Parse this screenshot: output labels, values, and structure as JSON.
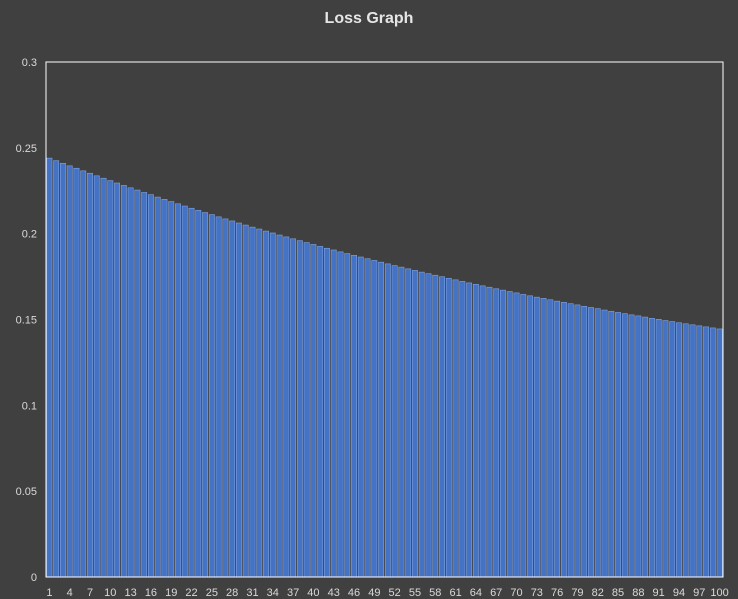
{
  "chart_data": {
    "type": "bar",
    "title": "Loss Graph",
    "xlabel": "",
    "ylabel": "",
    "ylim": [
      0,
      0.3
    ],
    "yticks": [
      "0",
      "0.05",
      "0.1",
      "0.15",
      "0.2",
      "0.25",
      "0.3"
    ],
    "xtick_labels": [
      "1",
      "4",
      "7",
      "10",
      "13",
      "16",
      "19",
      "22",
      "25",
      "28",
      "31",
      "34",
      "37",
      "40",
      "43",
      "46",
      "49",
      "52",
      "55",
      "58",
      "61",
      "64",
      "67",
      "70",
      "73",
      "76",
      "79",
      "82",
      "85",
      "88",
      "91",
      "94",
      "97",
      "100"
    ],
    "grid": false,
    "legend": "none",
    "categories": [
      1,
      2,
      3,
      4,
      5,
      6,
      7,
      8,
      9,
      10,
      11,
      12,
      13,
      14,
      15,
      16,
      17,
      18,
      19,
      20,
      21,
      22,
      23,
      24,
      25,
      26,
      27,
      28,
      29,
      30,
      31,
      32,
      33,
      34,
      35,
      36,
      37,
      38,
      39,
      40,
      41,
      42,
      43,
      44,
      45,
      46,
      47,
      48,
      49,
      50,
      51,
      52,
      53,
      54,
      55,
      56,
      57,
      58,
      59,
      60,
      61,
      62,
      63,
      64,
      65,
      66,
      67,
      68,
      69,
      70,
      71,
      72,
      73,
      74,
      75,
      76,
      77,
      78,
      79,
      80,
      81,
      82,
      83,
      84,
      85,
      86,
      87,
      88,
      89,
      90,
      91,
      92,
      93,
      94,
      95,
      96,
      97,
      98,
      99,
      100
    ],
    "values": [
      0.244,
      0.2425,
      0.241,
      0.2395,
      0.2381,
      0.2366,
      0.2352,
      0.2337,
      0.2323,
      0.2309,
      0.2295,
      0.2281,
      0.2267,
      0.2254,
      0.224,
      0.2227,
      0.2213,
      0.22,
      0.2187,
      0.2174,
      0.2161,
      0.2148,
      0.2136,
      0.2123,
      0.2111,
      0.2098,
      0.2086,
      0.2074,
      0.2062,
      0.205,
      0.2038,
      0.2027,
      0.2015,
      0.2004,
      0.1992,
      0.1981,
      0.197,
      0.1959,
      0.1948,
      0.1937,
      0.1926,
      0.1915,
      0.1905,
      0.1894,
      0.1884,
      0.1874,
      0.1864,
      0.1854,
      0.1844,
      0.1834,
      0.1824,
      0.1814,
      0.1805,
      0.1795,
      0.1786,
      0.1776,
      0.1767,
      0.1758,
      0.1749,
      0.174,
      0.1731,
      0.1722,
      0.1713,
      0.1705,
      0.1696,
      0.1688,
      0.1679,
      0.1671,
      0.1663,
      0.1655,
      0.1646,
      0.1638,
      0.163,
      0.1623,
      0.1615,
      0.1607,
      0.16,
      0.1592,
      0.1585,
      0.1577,
      0.157,
      0.1563,
      0.1555,
      0.1548,
      0.1541,
      0.1534,
      0.1527,
      0.1521,
      0.1514,
      0.1507,
      0.1501,
      0.1494,
      0.1488,
      0.1481,
      0.1475,
      0.1469,
      0.1463,
      0.1457,
      0.1451,
      0.1445
    ],
    "colors": {
      "bar_fill": "#4472c4",
      "bar_stroke": "#7ea2e0",
      "plot_border": "#ffffff",
      "background": "#404040"
    }
  }
}
